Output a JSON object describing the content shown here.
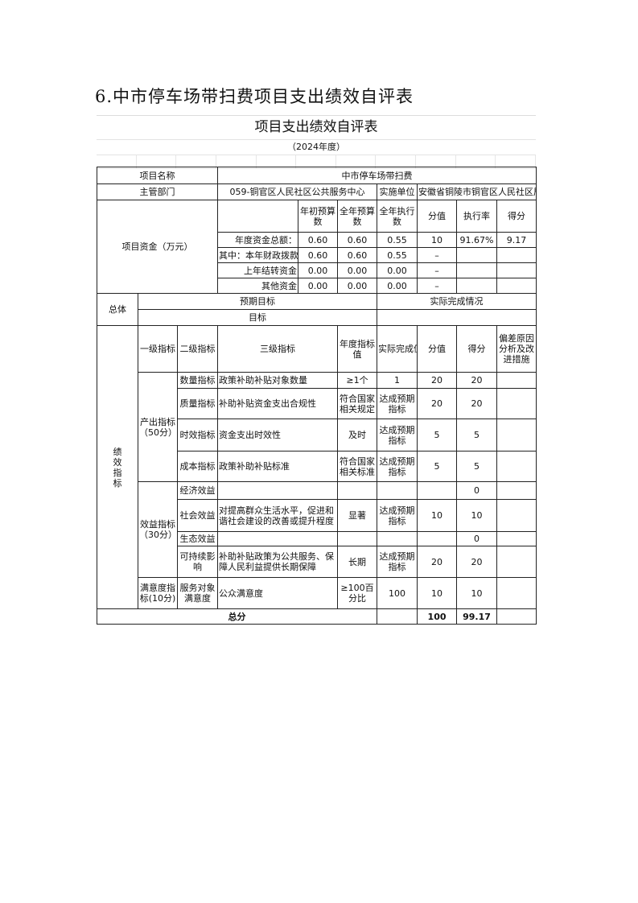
{
  "heading": "6.中市停车场带扫费项目支出绩效自评表",
  "sheet": {
    "title": "项目支出绩效自评表",
    "year": "（2024年度）"
  },
  "info": {
    "name_label": "项目名称",
    "name": "中市停车场带扫费",
    "dept_label": "主管部门",
    "dept": "059-铜官区人民社区公共服务中心",
    "unit_label": "实施单位",
    "unit": "安徽省铜陵市铜官区人民社区居"
  },
  "funds": {
    "label": "项目资金（万元）",
    "headers": [
      "年初预算数",
      "全年预算数",
      "全年执行数",
      "分值",
      "执行率",
      "得分"
    ],
    "rows": [
      {
        "name": "年度资金总额：",
        "v": [
          "0.60",
          "0.60",
          "0.55",
          "10",
          "91.67%",
          "9.17"
        ]
      },
      {
        "name": "其中：本年财政拨款",
        "v": [
          "0.60",
          "0.60",
          "0.55",
          "–",
          "",
          ""
        ]
      },
      {
        "name": "上年结转资金",
        "v": [
          "0.00",
          "0.00",
          "0.00",
          "–",
          "",
          ""
        ]
      },
      {
        "name": "其他资金",
        "v": [
          "0.00",
          "0.00",
          "0.00",
          "–",
          "",
          ""
        ]
      }
    ]
  },
  "overall": {
    "label": "总体",
    "expected": "预期目标",
    "actual": "实际完成情况",
    "goal": "目标"
  },
  "perf": {
    "label": "绩效指标",
    "headers": [
      "一级指标",
      "二级指标",
      "三级指标",
      "年度指标值",
      "实际完成值",
      "分值",
      "得分",
      "偏差原因分析及改进措施"
    ],
    "groups": [
      {
        "name": "产出指标（50分）",
        "rows": [
          {
            "l2": "数量指标",
            "l3": "政策补助补贴对象数量",
            "target": "≥1个",
            "actual": "1",
            "score_value": "20",
            "score": "20"
          },
          {
            "l2": "质量指标",
            "l3": "补助补贴资金支出合规性",
            "target": "符合国家相关规定",
            "actual": "达成预期指标",
            "score_value": "20",
            "score": "20"
          },
          {
            "l2": "时效指标",
            "l3": "资金支出时效性",
            "target": "及时",
            "actual": "达成预期指标",
            "score_value": "5",
            "score": "5"
          },
          {
            "l2": "成本指标",
            "l3": "政策补助补贴标准",
            "target": "符合国家相关标准",
            "actual": "达成预期指标",
            "score_value": "5",
            "score": "5"
          }
        ]
      },
      {
        "name": "效益指标（30分）",
        "rows": [
          {
            "l2": "经济效益",
            "l3": "",
            "target": "",
            "actual": "",
            "score_value": "",
            "score": "0"
          },
          {
            "l2": "社会效益",
            "l3": "对提高群众生活水平，促进和谐社会建设的改善或提升程度",
            "target": "显著",
            "actual": "达成预期指标",
            "score_value": "10",
            "score": "10"
          },
          {
            "l2": "生态效益",
            "l3": "",
            "target": "",
            "actual": "",
            "score_value": "",
            "score": "0"
          },
          {
            "l2": "可持续影响",
            "l3": "补助补贴政策为公共服务、保障人民利益提供长期保障",
            "target": "长期",
            "actual": "达成预期指标",
            "score_value": "20",
            "score": "20"
          }
        ]
      },
      {
        "name": "满意度指标(10分)",
        "rows": [
          {
            "l2": "服务对象满意度",
            "l3": "公众满意度",
            "target": "≥100百分比",
            "actual": "100",
            "score_value": "10",
            "score": "10"
          }
        ]
      }
    ]
  },
  "total": {
    "label": "总分",
    "score_value": "100",
    "score": "99.17"
  }
}
